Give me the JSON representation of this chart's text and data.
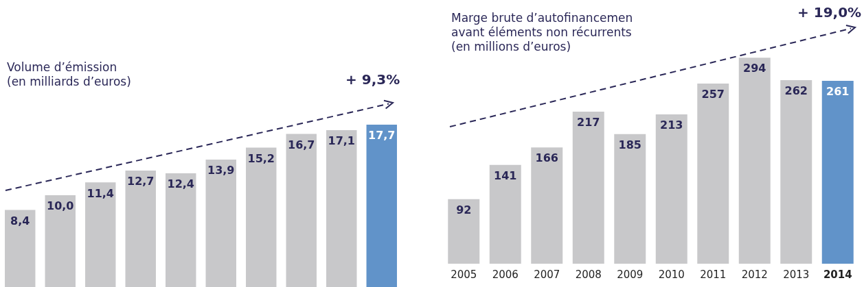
{
  "chart_data": [
    {
      "type": "bar",
      "title": "Volume d’émission\n(en milliards d’euros)",
      "categories": [
        null,
        null,
        null,
        null,
        null,
        null,
        null,
        null,
        null,
        null
      ],
      "values": [
        8.4,
        10.0,
        11.4,
        12.7,
        12.4,
        13.9,
        15.2,
        16.7,
        17.1,
        17.7
      ],
      "colors": [
        "#c8c8ca",
        "#c8c8ca",
        "#c8c8ca",
        "#c8c8ca",
        "#c8c8ca",
        "#c8c8ca",
        "#c8c8ca",
        "#c8c8ca",
        "#c8c8ca",
        "#6193c9"
      ],
      "value_labels": [
        "8,4",
        "10,0",
        "11,4",
        "12,7",
        "12,4",
        "13,9",
        "15,2",
        "16,7",
        "17,1",
        "17,7"
      ],
      "annotations": [
        "+ 9,3%"
      ],
      "tick_labels": false
    },
    {
      "type": "bar",
      "title": "Marge brute d’autofinancemen\navant éléments non récurrents\n(en millions d’euros)",
      "categories": [
        "2005",
        "2006",
        "2007",
        "2008",
        "2009",
        "2010",
        "2011",
        "2012",
        "2013",
        "2014"
      ],
      "values": [
        92,
        141,
        166,
        217,
        185,
        213,
        257,
        294,
        262,
        261
      ],
      "colors": [
        "#c8c8ca",
        "#c8c8ca",
        "#c8c8ca",
        "#c8c8ca",
        "#c8c8ca",
        "#c8c8ca",
        "#c8c8ca",
        "#c8c8ca",
        "#c8c8ca",
        "#6193c9"
      ],
      "value_labels": [
        "92",
        "141",
        "166",
        "217",
        "185",
        "213",
        "257",
        "294",
        "262",
        "261"
      ],
      "annotations": [
        "+ 19,0%"
      ],
      "tick_labels": "x"
    }
  ]
}
